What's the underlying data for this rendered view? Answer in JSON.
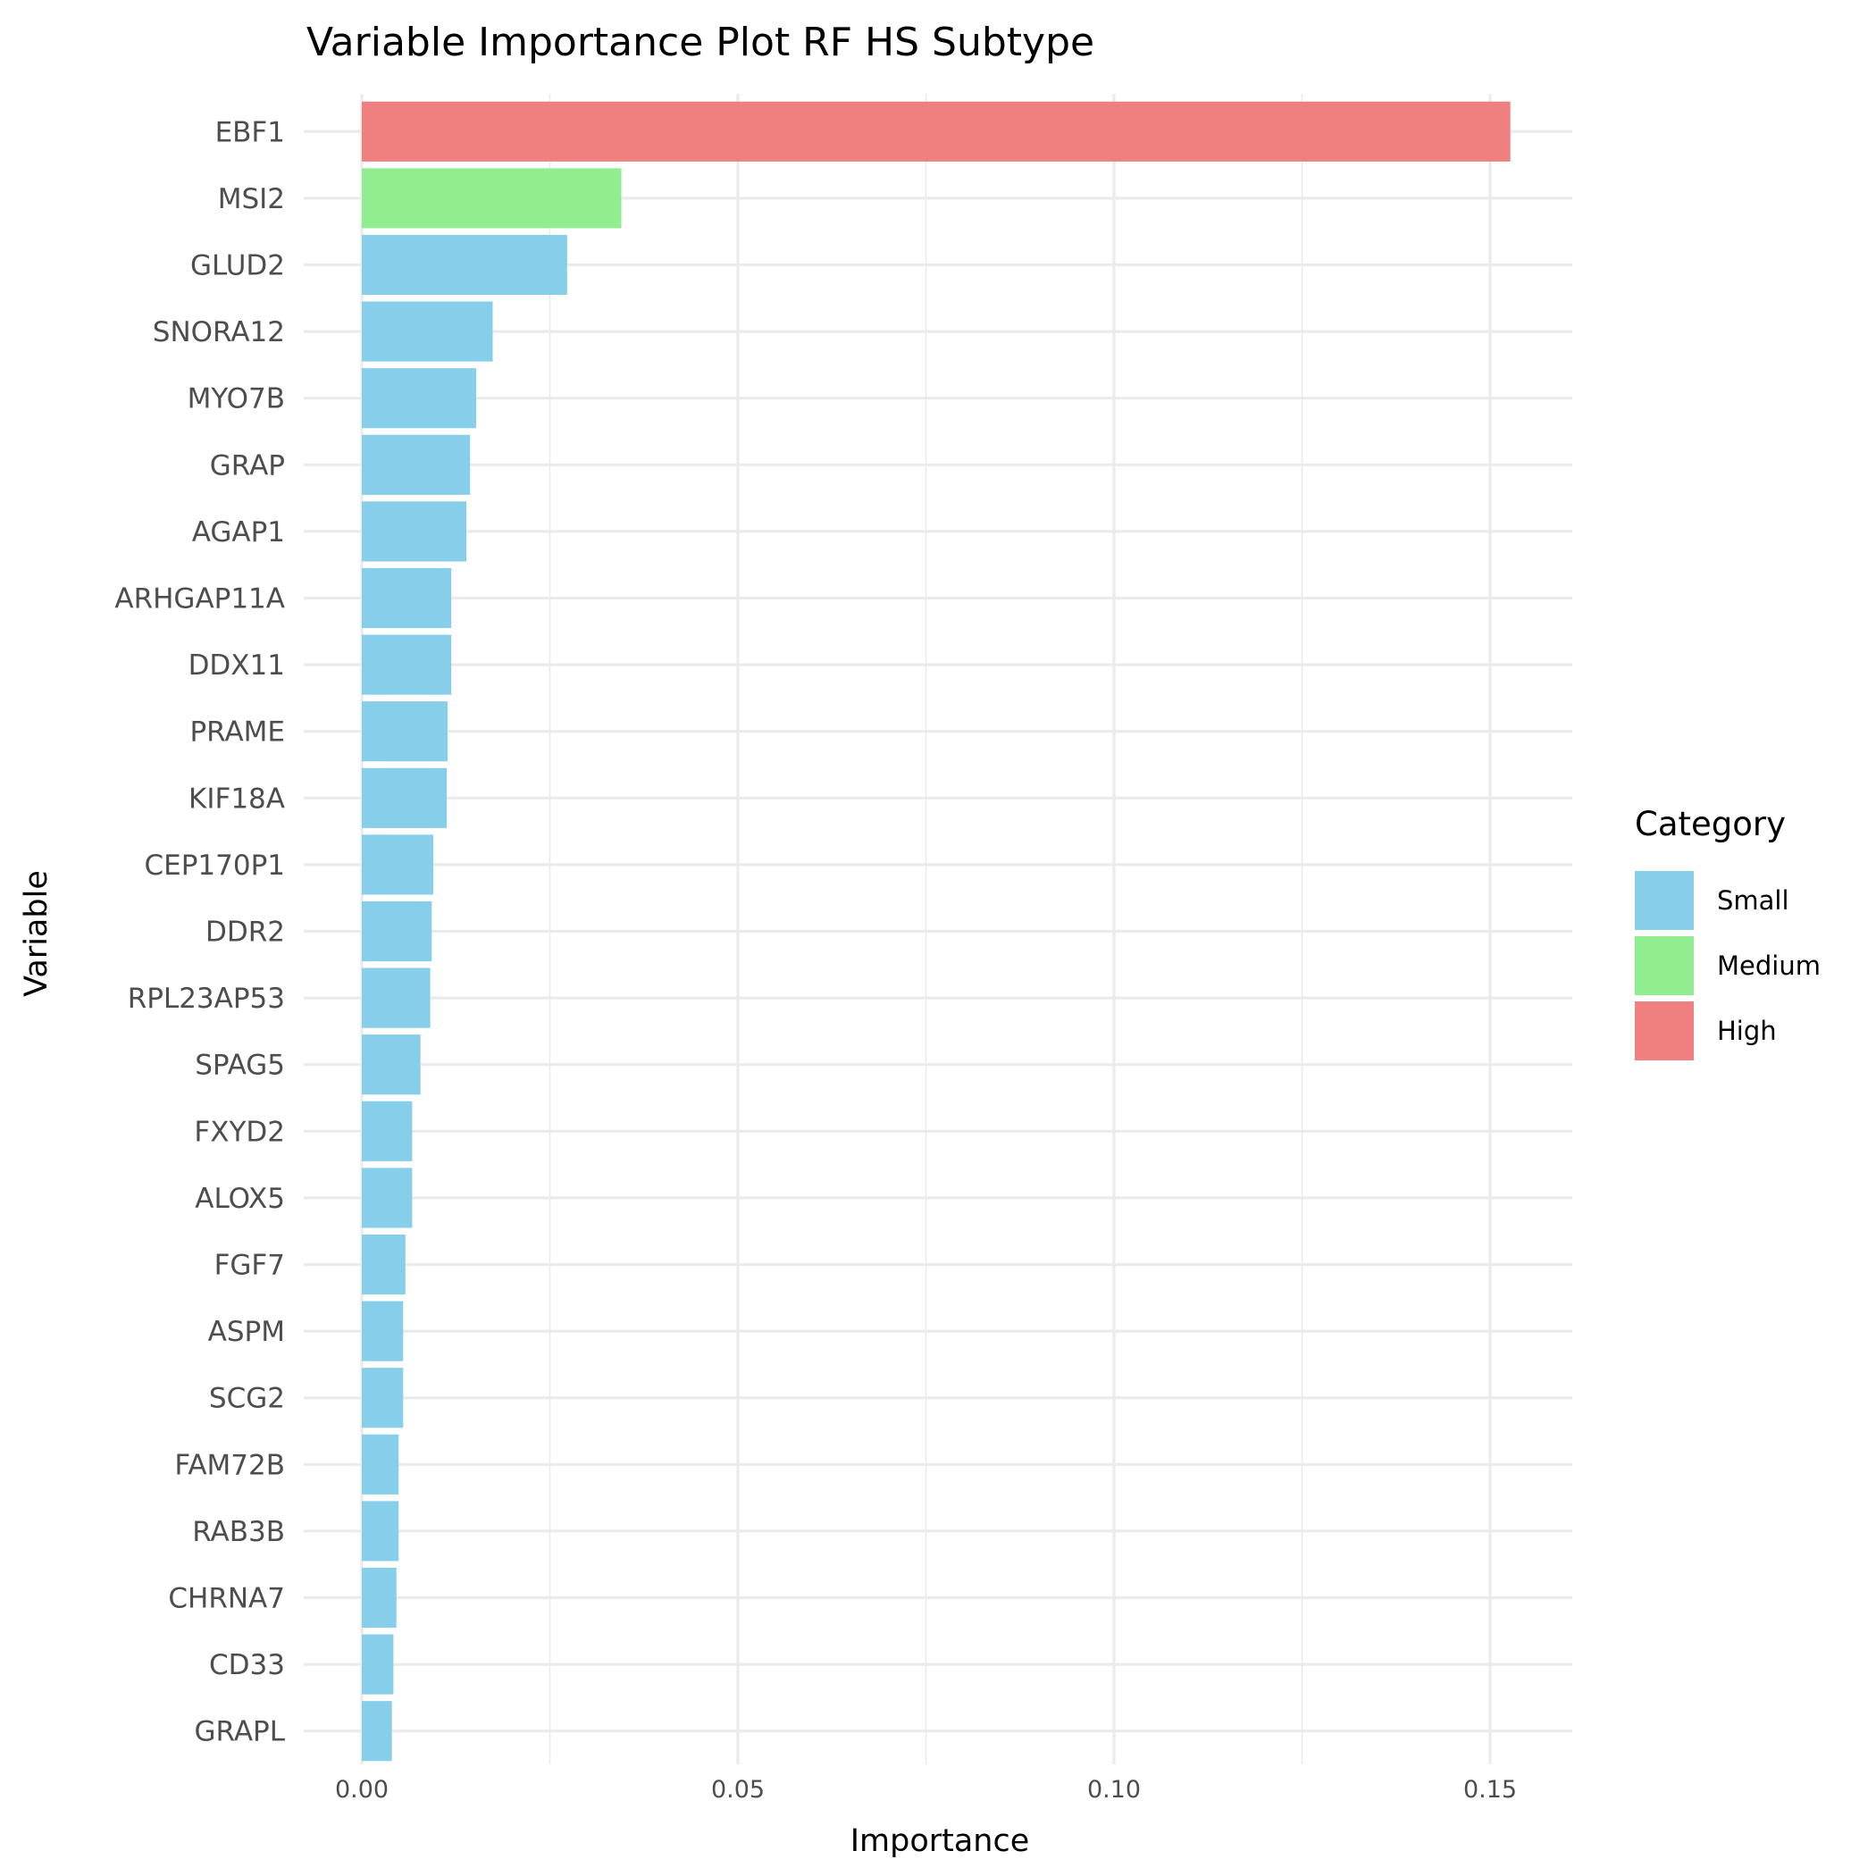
{
  "chart_data": {
    "type": "bar",
    "orientation": "horizontal",
    "title": "Variable Importance Plot RF HS Subtype",
    "xlabel": "Importance",
    "ylabel": "Variable",
    "xlim": [
      -0.0078,
      0.161
    ],
    "x_ticks": [
      {
        "value": 0.0,
        "label": "0.00"
      },
      {
        "value": 0.05,
        "label": "0.05"
      },
      {
        "value": 0.1,
        "label": "0.10"
      },
      {
        "value": 0.15,
        "label": "0.15"
      }
    ],
    "x_minor_ticks": [
      0.025,
      0.075,
      0.125
    ],
    "grid": true,
    "legend": {
      "title": "Category",
      "placement": "right",
      "entries": [
        {
          "name": "Small",
          "color": "#87CEEB"
        },
        {
          "name": "Medium",
          "color": "#90EE90"
        },
        {
          "name": "High",
          "color": "#F08080"
        }
      ]
    },
    "bars": [
      {
        "variable": "EBF1",
        "value": 0.1527,
        "category": "High"
      },
      {
        "variable": "MSI2",
        "value": 0.0345,
        "category": "Medium"
      },
      {
        "variable": "GLUD2",
        "value": 0.0273,
        "category": "Small"
      },
      {
        "variable": "SNORA12",
        "value": 0.0174,
        "category": "Small"
      },
      {
        "variable": "MYO7B",
        "value": 0.0152,
        "category": "Small"
      },
      {
        "variable": "GRAP",
        "value": 0.0144,
        "category": "Small"
      },
      {
        "variable": "AGAP1",
        "value": 0.0139,
        "category": "Small"
      },
      {
        "variable": "ARHGAP11A",
        "value": 0.0119,
        "category": "Small"
      },
      {
        "variable": "DDX11",
        "value": 0.0119,
        "category": "Small"
      },
      {
        "variable": "PRAME",
        "value": 0.0114,
        "category": "Small"
      },
      {
        "variable": "KIF18A",
        "value": 0.0113,
        "category": "Small"
      },
      {
        "variable": "CEP170P1",
        "value": 0.0095,
        "category": "Small"
      },
      {
        "variable": "DDR2",
        "value": 0.0093,
        "category": "Small"
      },
      {
        "variable": "RPL23AP53",
        "value": 0.0091,
        "category": "Small"
      },
      {
        "variable": "SPAG5",
        "value": 0.0078,
        "category": "Small"
      },
      {
        "variable": "FXYD2",
        "value": 0.0067,
        "category": "Small"
      },
      {
        "variable": "ALOX5",
        "value": 0.0067,
        "category": "Small"
      },
      {
        "variable": "FGF7",
        "value": 0.0058,
        "category": "Small"
      },
      {
        "variable": "ASPM",
        "value": 0.0055,
        "category": "Small"
      },
      {
        "variable": "SCG2",
        "value": 0.0055,
        "category": "Small"
      },
      {
        "variable": "FAM72B",
        "value": 0.0049,
        "category": "Small"
      },
      {
        "variable": "RAB3B",
        "value": 0.0049,
        "category": "Small"
      },
      {
        "variable": "CHRNA7",
        "value": 0.0046,
        "category": "Small"
      },
      {
        "variable": "CD33",
        "value": 0.0042,
        "category": "Small"
      },
      {
        "variable": "GRAPL",
        "value": 0.004,
        "category": "Small"
      }
    ]
  }
}
